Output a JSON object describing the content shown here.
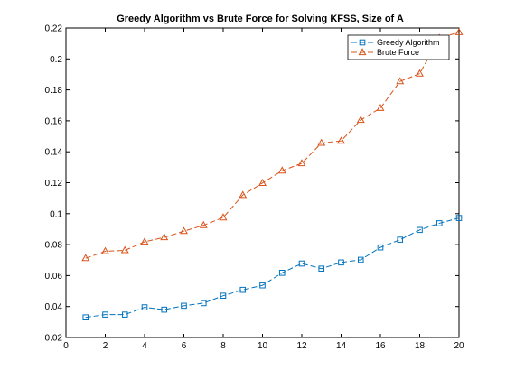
{
  "chart_data": {
    "type": "line",
    "title": "Greedy Algorithm vs Brute Force for Solving KFSS, Size of A",
    "xlabel": "",
    "ylabel": "",
    "xlim": [
      0,
      20
    ],
    "ylim": [
      0.02,
      0.22
    ],
    "xticks": [
      0,
      2,
      4,
      6,
      8,
      10,
      12,
      14,
      16,
      18,
      20
    ],
    "yticks": [
      0.02,
      0.04,
      0.06,
      0.08,
      0.1,
      0.12,
      0.14,
      0.16,
      0.18,
      0.2,
      0.22
    ],
    "grid": false,
    "legend_position": "top-right",
    "x": [
      1,
      2,
      3,
      4,
      5,
      6,
      7,
      8,
      9,
      10,
      11,
      12,
      13,
      14,
      15,
      16,
      17,
      18,
      19,
      20
    ],
    "series": [
      {
        "name": "Greedy Algorithm",
        "color": "#0072BD",
        "marker": "square",
        "line_style": "dashed",
        "values": [
          0.033,
          0.0348,
          0.0348,
          0.0395,
          0.038,
          0.0405,
          0.0422,
          0.047,
          0.0508,
          0.0537,
          0.0618,
          0.0678,
          0.0645,
          0.0685,
          0.0702,
          0.0782,
          0.0832,
          0.0895,
          0.0938,
          0.0972
        ]
      },
      {
        "name": "Brute Force",
        "color": "#D95319",
        "marker": "triangle",
        "line_style": "dashed",
        "values": [
          0.0712,
          0.0757,
          0.0763,
          0.0818,
          0.0847,
          0.0887,
          0.0925,
          0.0975,
          0.112,
          0.1198,
          0.1278,
          0.1325,
          0.1457,
          0.147,
          0.1605,
          0.1682,
          0.1855,
          0.1905,
          0.2135,
          0.2172
        ]
      }
    ]
  }
}
